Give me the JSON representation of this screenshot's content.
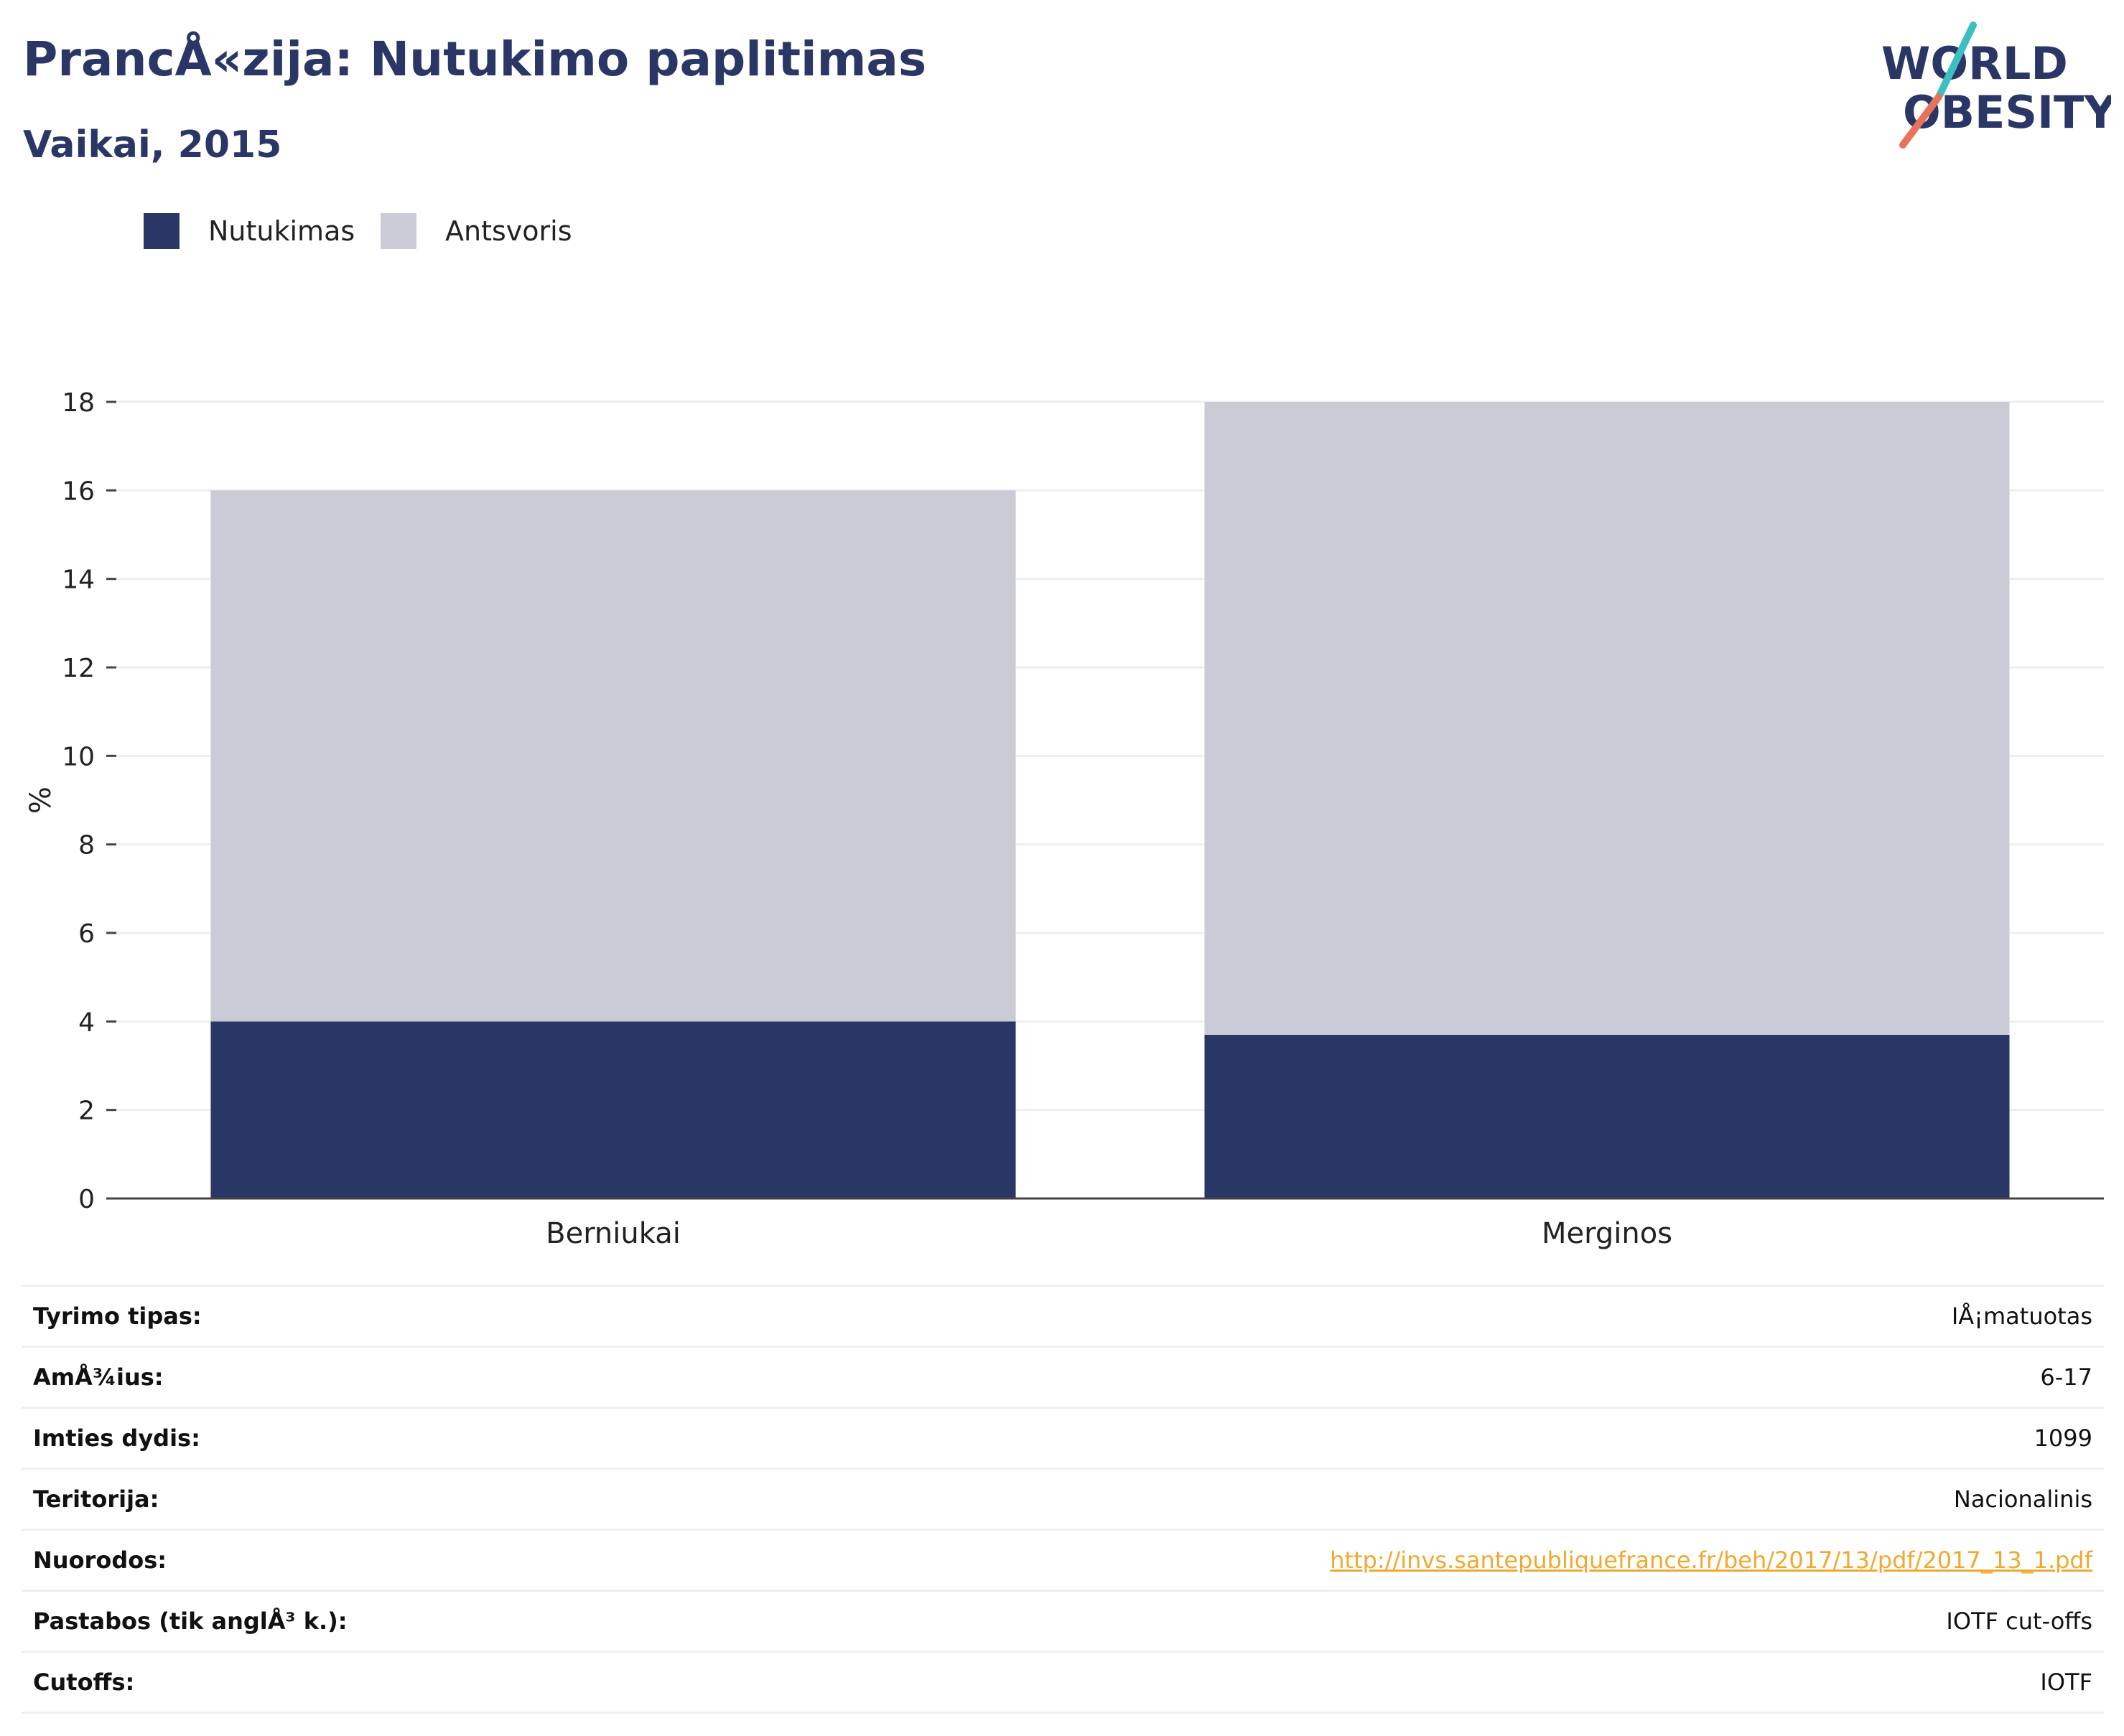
{
  "header": {
    "title": "PrancÅ«zija: Nutukimo paplitimas",
    "subtitle": "Vaikai, 2015"
  },
  "logo": {
    "line1": "WORLD",
    "line2": "OBESITY",
    "colors": {
      "text": "#2a3665",
      "slash_top": "#3bbfc1",
      "slash_bottom": "#e8735a"
    }
  },
  "legend": [
    {
      "label": "Nutukimas",
      "color": "#2a3665"
    },
    {
      "label": "Antsvoris",
      "color": "#cacbd6"
    }
  ],
  "chart_data": {
    "type": "bar",
    "stacked": true,
    "categories": [
      "Berniukai",
      "Merginos"
    ],
    "series": [
      {
        "name": "Nutukimas",
        "values": [
          4.0,
          3.7
        ],
        "color": "#2a3665"
      },
      {
        "name": "Antsvoris",
        "values": [
          12.0,
          14.3
        ],
        "color": "#cacbd6"
      }
    ],
    "ylabel": "%",
    "ylim": [
      0,
      18
    ],
    "yticks": [
      0,
      2,
      4,
      6,
      8,
      10,
      12,
      14,
      16,
      18
    ],
    "grid": true,
    "legend_position": "top-left"
  },
  "info": [
    {
      "key": "Tyrimo tipas:",
      "value": "IÅ¡matuotas"
    },
    {
      "key": "AmÅ¾ius:",
      "value": "6-17"
    },
    {
      "key": "Imties dydis:",
      "value": "1099"
    },
    {
      "key": "Teritorija:",
      "value": "Nacionalinis"
    },
    {
      "key": "Nuorodos:",
      "value": "http://invs.santepubliquefrance.fr/beh/2017/13/pdf/2017_13_1.pdf",
      "is_link": true
    },
    {
      "key": "Pastabos (tik anglÅ³ k.):",
      "value": "IOTF cut-offs"
    },
    {
      "key": "Cutoffs:",
      "value": "IOTF"
    }
  ]
}
